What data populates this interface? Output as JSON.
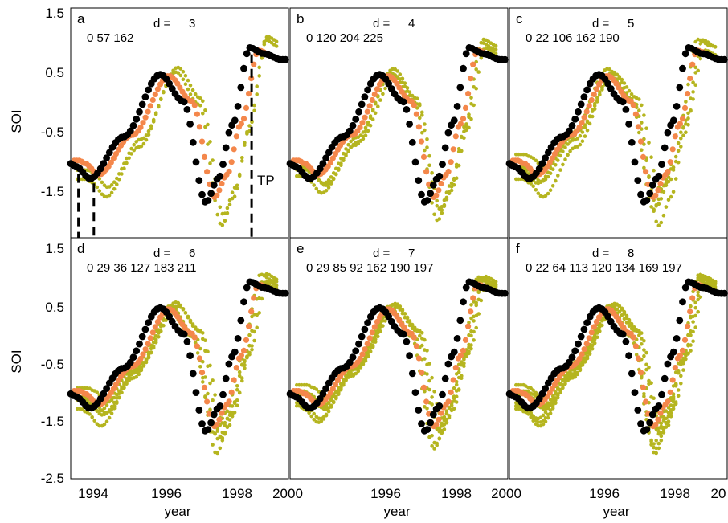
{
  "colors": {
    "black_series": "#000000",
    "orange_series": "#f4874b",
    "olive_series": "#b5b51f",
    "frame": "#000000"
  },
  "y_axis_label": "SOI",
  "x_axis_label": "year",
  "y_tick_labels_top": [
    "1.5",
    "0.5",
    "-0.5",
    "-1.5"
  ],
  "y_tick_labels_bottom": [
    "1.5",
    "0.5",
    "-0.5",
    "-1.5",
    "-2.5"
  ],
  "x_tick_labels": [
    "1994",
    "1996",
    "1998",
    "2000",
    "1996",
    "1998",
    "2000",
    "1996",
    "1998",
    "20"
  ],
  "tp_label": "TP",
  "chart_data": [
    {
      "type": "scatter",
      "panel": "a",
      "d_label": "d =",
      "d_value": "3",
      "lags": "0  57 162",
      "xlim": [
        1994,
        2000.2
      ],
      "ylim": [
        -2,
        1.5
      ],
      "ghosts": [
        [
          0.45,
          0.2,
          0
        ],
        [
          0.5,
          0.15,
          1
        ]
      ],
      "markers": [
        1994.22,
        1994.66,
        1999.15
      ]
    },
    {
      "type": "scatter",
      "panel": "b",
      "d_label": "d =",
      "d_value": "4",
      "lags": "0 120 204 225",
      "xlim": [
        1994,
        2000.2
      ],
      "ylim": [
        -2,
        1.5
      ],
      "ghosts": [
        [
          0.35,
          0.15,
          0
        ],
        [
          0.4,
          0.1,
          1
        ],
        [
          0.45,
          0.05,
          2
        ]
      ],
      "markers": []
    },
    {
      "type": "scatter",
      "panel": "c",
      "d_label": "d =",
      "d_value": "5",
      "lags": "0  22 106 162 190",
      "xlim": [
        1994,
        2000.2
      ],
      "ylim": [
        -2,
        1.5
      ],
      "ghosts": [
        [
          0.4,
          0.2,
          0
        ],
        [
          0.25,
          0.1,
          1
        ],
        [
          0.35,
          0.0,
          2
        ],
        [
          0.45,
          -0.1,
          3
        ]
      ],
      "markers": []
    },
    {
      "type": "scatter",
      "panel": "d",
      "d_label": "d =",
      "d_value": "6",
      "lags": "0  29  36 127 183 211",
      "xlim": [
        1994,
        2000.2
      ],
      "ylim": [
        -2.7,
        1.5
      ],
      "ghosts": [
        [
          0.3,
          0.2,
          0
        ],
        [
          0.45,
          0.1,
          1
        ],
        [
          0.35,
          0.05,
          2
        ],
        [
          0.5,
          -0.05,
          3
        ],
        [
          0.25,
          0.0,
          4
        ]
      ],
      "markers": []
    },
    {
      "type": "scatter",
      "panel": "e",
      "d_label": "d =",
      "d_value": "7",
      "lags": "0  29  85  92 162 190 197",
      "xlim": [
        1994,
        2000.2
      ],
      "ylim": [
        -2.7,
        1.5
      ],
      "ghosts": [
        [
          0.3,
          0.1,
          0
        ],
        [
          0.45,
          0.05,
          1
        ],
        [
          0.35,
          -0.05,
          2
        ],
        [
          0.5,
          -0.1,
          3
        ],
        [
          0.25,
          0.15,
          4
        ],
        [
          0.4,
          0.0,
          5
        ]
      ],
      "markers": []
    },
    {
      "type": "scatter",
      "panel": "f",
      "d_label": "d =",
      "d_value": "8",
      "lags": "0  22  64 113 120 134 169 197",
      "xlim": [
        1994,
        2000.2
      ],
      "ylim": [
        -2.7,
        1.5
      ],
      "ghosts": [
        [
          0.3,
          0.15,
          0
        ],
        [
          0.45,
          0.05,
          1
        ],
        [
          0.35,
          -0.05,
          2
        ],
        [
          0.5,
          0.0,
          3
        ],
        [
          0.25,
          0.1,
          4
        ],
        [
          0.4,
          -0.1,
          5
        ],
        [
          0.3,
          0.2,
          6
        ]
      ],
      "markers": []
    }
  ]
}
